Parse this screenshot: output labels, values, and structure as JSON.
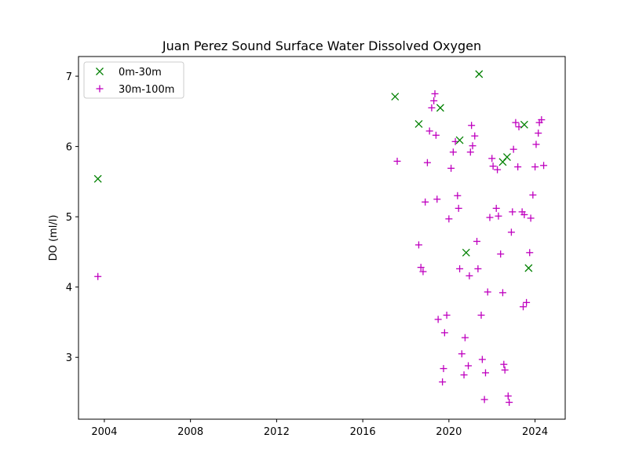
{
  "chart_data": {
    "type": "scatter",
    "title": "Juan Perez Sound Surface Water Dissolved Oxygen",
    "xlabel": "",
    "ylabel": "DO (ml/l)",
    "xlim": [
      2002.8,
      2025.4
    ],
    "ylim": [
      2.12,
      7.28
    ],
    "xticks": [
      2004,
      2008,
      2012,
      2016,
      2020,
      2024
    ],
    "xtick_labels": [
      "2004",
      "2008",
      "2012",
      "2016",
      "2020",
      "2024"
    ],
    "yticks": [
      3,
      4,
      5,
      6,
      7
    ],
    "ytick_labels": [
      "3",
      "4",
      "5",
      "6",
      "7"
    ],
    "grid": false,
    "legend_position": "top-left",
    "series": [
      {
        "name": "0m-30m",
        "marker": "x",
        "color": "#008000",
        "points": [
          [
            2003.7,
            5.54
          ],
          [
            2017.5,
            6.71
          ],
          [
            2018.6,
            6.32
          ],
          [
            2019.6,
            6.55
          ],
          [
            2020.5,
            6.09
          ],
          [
            2021.4,
            7.03
          ],
          [
            2020.8,
            4.49
          ],
          [
            2022.5,
            5.78
          ],
          [
            2022.7,
            5.85
          ],
          [
            2023.5,
            6.31
          ],
          [
            2023.7,
            4.27
          ]
        ]
      },
      {
        "name": "30m-100m",
        "marker": "+",
        "color": "#bf00bf",
        "points": [
          [
            2003.7,
            4.15
          ],
          [
            2017.6,
            5.79
          ],
          [
            2018.6,
            4.6
          ],
          [
            2018.7,
            4.28
          ],
          [
            2018.8,
            4.22
          ],
          [
            2018.9,
            5.21
          ],
          [
            2019.0,
            5.77
          ],
          [
            2019.1,
            6.22
          ],
          [
            2019.2,
            6.55
          ],
          [
            2019.3,
            6.65
          ],
          [
            2019.35,
            6.75
          ],
          [
            2019.4,
            6.16
          ],
          [
            2019.45,
            5.25
          ],
          [
            2019.5,
            3.54
          ],
          [
            2019.7,
            2.65
          ],
          [
            2019.75,
            2.84
          ],
          [
            2019.8,
            3.35
          ],
          [
            2019.9,
            3.6
          ],
          [
            2020.0,
            4.97
          ],
          [
            2020.1,
            5.69
          ],
          [
            2020.2,
            5.92
          ],
          [
            2020.3,
            6.07
          ],
          [
            2020.4,
            5.3
          ],
          [
            2020.45,
            5.12
          ],
          [
            2020.5,
            4.26
          ],
          [
            2020.6,
            3.05
          ],
          [
            2020.7,
            2.75
          ],
          [
            2020.75,
            3.28
          ],
          [
            2020.9,
            2.88
          ],
          [
            2020.95,
            4.16
          ],
          [
            2021.0,
            5.92
          ],
          [
            2021.05,
            6.3
          ],
          [
            2021.1,
            6.01
          ],
          [
            2021.2,
            6.15
          ],
          [
            2021.3,
            4.65
          ],
          [
            2021.35,
            4.26
          ],
          [
            2021.5,
            3.6
          ],
          [
            2021.55,
            2.97
          ],
          [
            2021.65,
            2.4
          ],
          [
            2021.7,
            2.78
          ],
          [
            2021.8,
            3.93
          ],
          [
            2021.9,
            4.99
          ],
          [
            2022.0,
            5.83
          ],
          [
            2022.05,
            5.72
          ],
          [
            2022.2,
            5.12
          ],
          [
            2022.25,
            5.67
          ],
          [
            2022.3,
            5.01
          ],
          [
            2022.4,
            4.47
          ],
          [
            2022.5,
            3.92
          ],
          [
            2022.55,
            2.9
          ],
          [
            2022.6,
            2.82
          ],
          [
            2022.75,
            2.45
          ],
          [
            2022.8,
            2.36
          ],
          [
            2022.9,
            4.78
          ],
          [
            2022.95,
            5.07
          ],
          [
            2023.0,
            5.96
          ],
          [
            2023.1,
            6.34
          ],
          [
            2023.2,
            5.71
          ],
          [
            2023.25,
            6.28
          ],
          [
            2023.4,
            5.07
          ],
          [
            2023.45,
            3.72
          ],
          [
            2023.5,
            5.03
          ],
          [
            2023.6,
            3.78
          ],
          [
            2023.75,
            4.49
          ],
          [
            2023.8,
            4.98
          ],
          [
            2023.9,
            5.31
          ],
          [
            2024.0,
            5.71
          ],
          [
            2024.05,
            6.03
          ],
          [
            2024.15,
            6.19
          ],
          [
            2024.2,
            6.34
          ],
          [
            2024.3,
            6.38
          ],
          [
            2024.4,
            5.73
          ]
        ]
      }
    ]
  }
}
